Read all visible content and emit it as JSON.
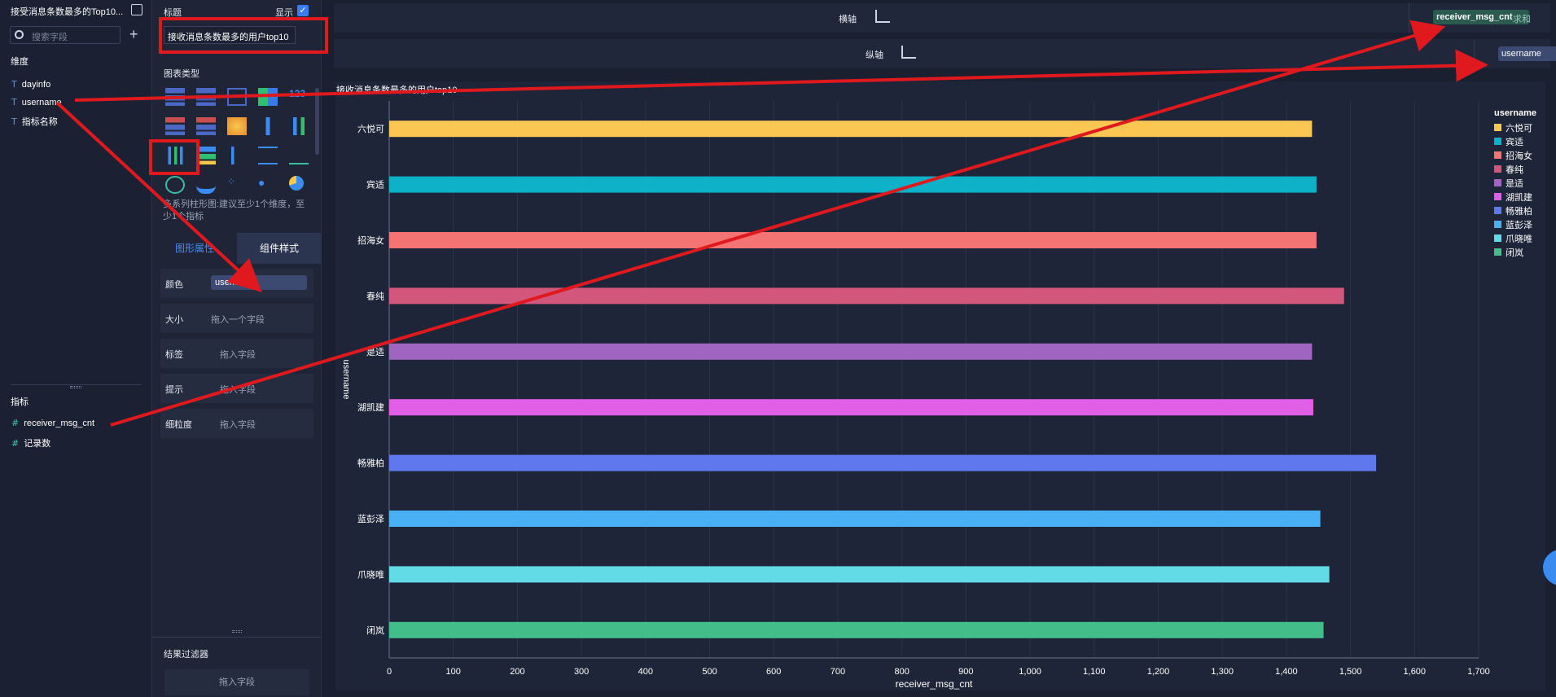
{
  "left_panel": {
    "title": "接受消息条数最多的Top10...",
    "search_placeholder": "搜索字段",
    "dimension_header": "维度",
    "dimensions": [
      "dayinfo",
      "username",
      "指标名称"
    ],
    "measure_header": "指标",
    "measures": [
      "receiver_msg_cnt",
      "记录数"
    ]
  },
  "mid_panel": {
    "title_label": "标题",
    "show_label": "显示",
    "title_value": "接收消息条数最多的用户top10",
    "chart_type_label": "图表类型",
    "chart_hint": "多系列柱形图:建议至少1个维度，至少1个指标",
    "tab_graph": "图形属性",
    "tab_style": "组件样式",
    "props": [
      {
        "label": "颜色",
        "value": "username"
      },
      {
        "label": "大小",
        "value": "拖入一个字段"
      },
      {
        "label": "标签",
        "value": "拖入字段"
      },
      {
        "label": "提示",
        "value": "拖入字段"
      },
      {
        "label": "细粒度",
        "value": "拖入字段"
      }
    ],
    "filter_label": "结果过滤器",
    "filter_value": "拖入字段"
  },
  "axes": {
    "x_label": "横轴",
    "x_field": "receiver_msg_cnt",
    "x_agg": "求和",
    "y_label": "纵轴",
    "y_field": "username"
  },
  "chart_data": {
    "type": "bar",
    "orientation": "horizontal",
    "title": "接收消息条数最多的用户top10",
    "categories": [
      "六悦可",
      "宾适",
      "招海女",
      "春纯",
      "是适",
      "湖凯建",
      "畅雅柏",
      "蓝彭泽",
      "爪晓唯",
      "闭岚"
    ],
    "values": [
      1440,
      1447,
      1447,
      1490,
      1440,
      1442,
      1540,
      1453,
      1467,
      1458
    ],
    "colors": [
      "#fcc653",
      "#0eb2c8",
      "#f47373",
      "#d3567c",
      "#a065c1",
      "#e05fe6",
      "#5f78ee",
      "#49b0f4",
      "#62dbe6",
      "#43bd8a"
    ],
    "xlabel": "receiver_msg_cnt",
    "ylabel": "username",
    "xlim": [
      0,
      1700
    ],
    "xticks": [
      "0",
      "100",
      "200",
      "300",
      "400",
      "500",
      "600",
      "700",
      "800",
      "900",
      "1,000",
      "1,100",
      "1,200",
      "1,300",
      "1,400",
      "1,500",
      "1,600",
      "1,700"
    ],
    "legend_title": "username",
    "legend_position": "right",
    "grid": true
  }
}
